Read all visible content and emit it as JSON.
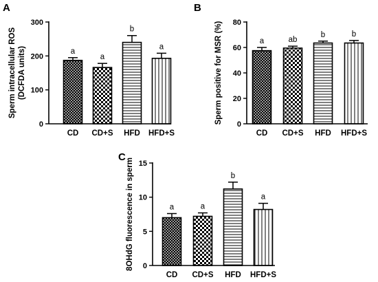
{
  "chart_data": [
    {
      "panel": "A",
      "type": "bar",
      "ylabel_lines": [
        "Sperm intracellular ROS",
        "(DCFDA units)"
      ],
      "categories": [
        "CD",
        "CD+S",
        "HFD",
        "HFD+S"
      ],
      "values": [
        187,
        166,
        240,
        193
      ],
      "errors": [
        8,
        12,
        20,
        15
      ],
      "significance": [
        "a",
        "a",
        "b",
        "a"
      ],
      "patterns": [
        "crosshatch",
        "checker",
        "horizontal",
        "vertical"
      ],
      "ylim": [
        0,
        300
      ],
      "yticks": [
        0,
        100,
        200,
        300
      ],
      "grid": false
    },
    {
      "panel": "B",
      "type": "bar",
      "ylabel_lines": [
        "Sperm positive for MSR (%)"
      ],
      "categories": [
        "CD",
        "CD+S",
        "HFD",
        "HFD+S"
      ],
      "values": [
        57.5,
        59.5,
        63.5,
        63.5
      ],
      "errors": [
        2.5,
        1.5,
        1.5,
        2
      ],
      "significance": [
        "a",
        "ab",
        "b",
        "b"
      ],
      "patterns": [
        "crosshatch",
        "checker",
        "horizontal",
        "vertical"
      ],
      "ylim": [
        0,
        80
      ],
      "yticks": [
        0,
        20,
        40,
        60,
        80
      ],
      "grid": false
    },
    {
      "panel": "C",
      "type": "bar",
      "ylabel_lines": [
        "8OHdG fluorescence in sperm"
      ],
      "categories": [
        "CD",
        "CD+S",
        "HFD",
        "HFD+S"
      ],
      "values": [
        7.0,
        7.2,
        11.2,
        8.2
      ],
      "errors": [
        0.6,
        0.5,
        1.0,
        0.9
      ],
      "significance": [
        "a",
        "a",
        "b",
        "a"
      ],
      "patterns": [
        "crosshatch",
        "checker",
        "horizontal",
        "vertical"
      ],
      "ylim": [
        0,
        15
      ],
      "yticks": [
        0,
        5,
        10,
        15
      ],
      "grid": false
    }
  ]
}
